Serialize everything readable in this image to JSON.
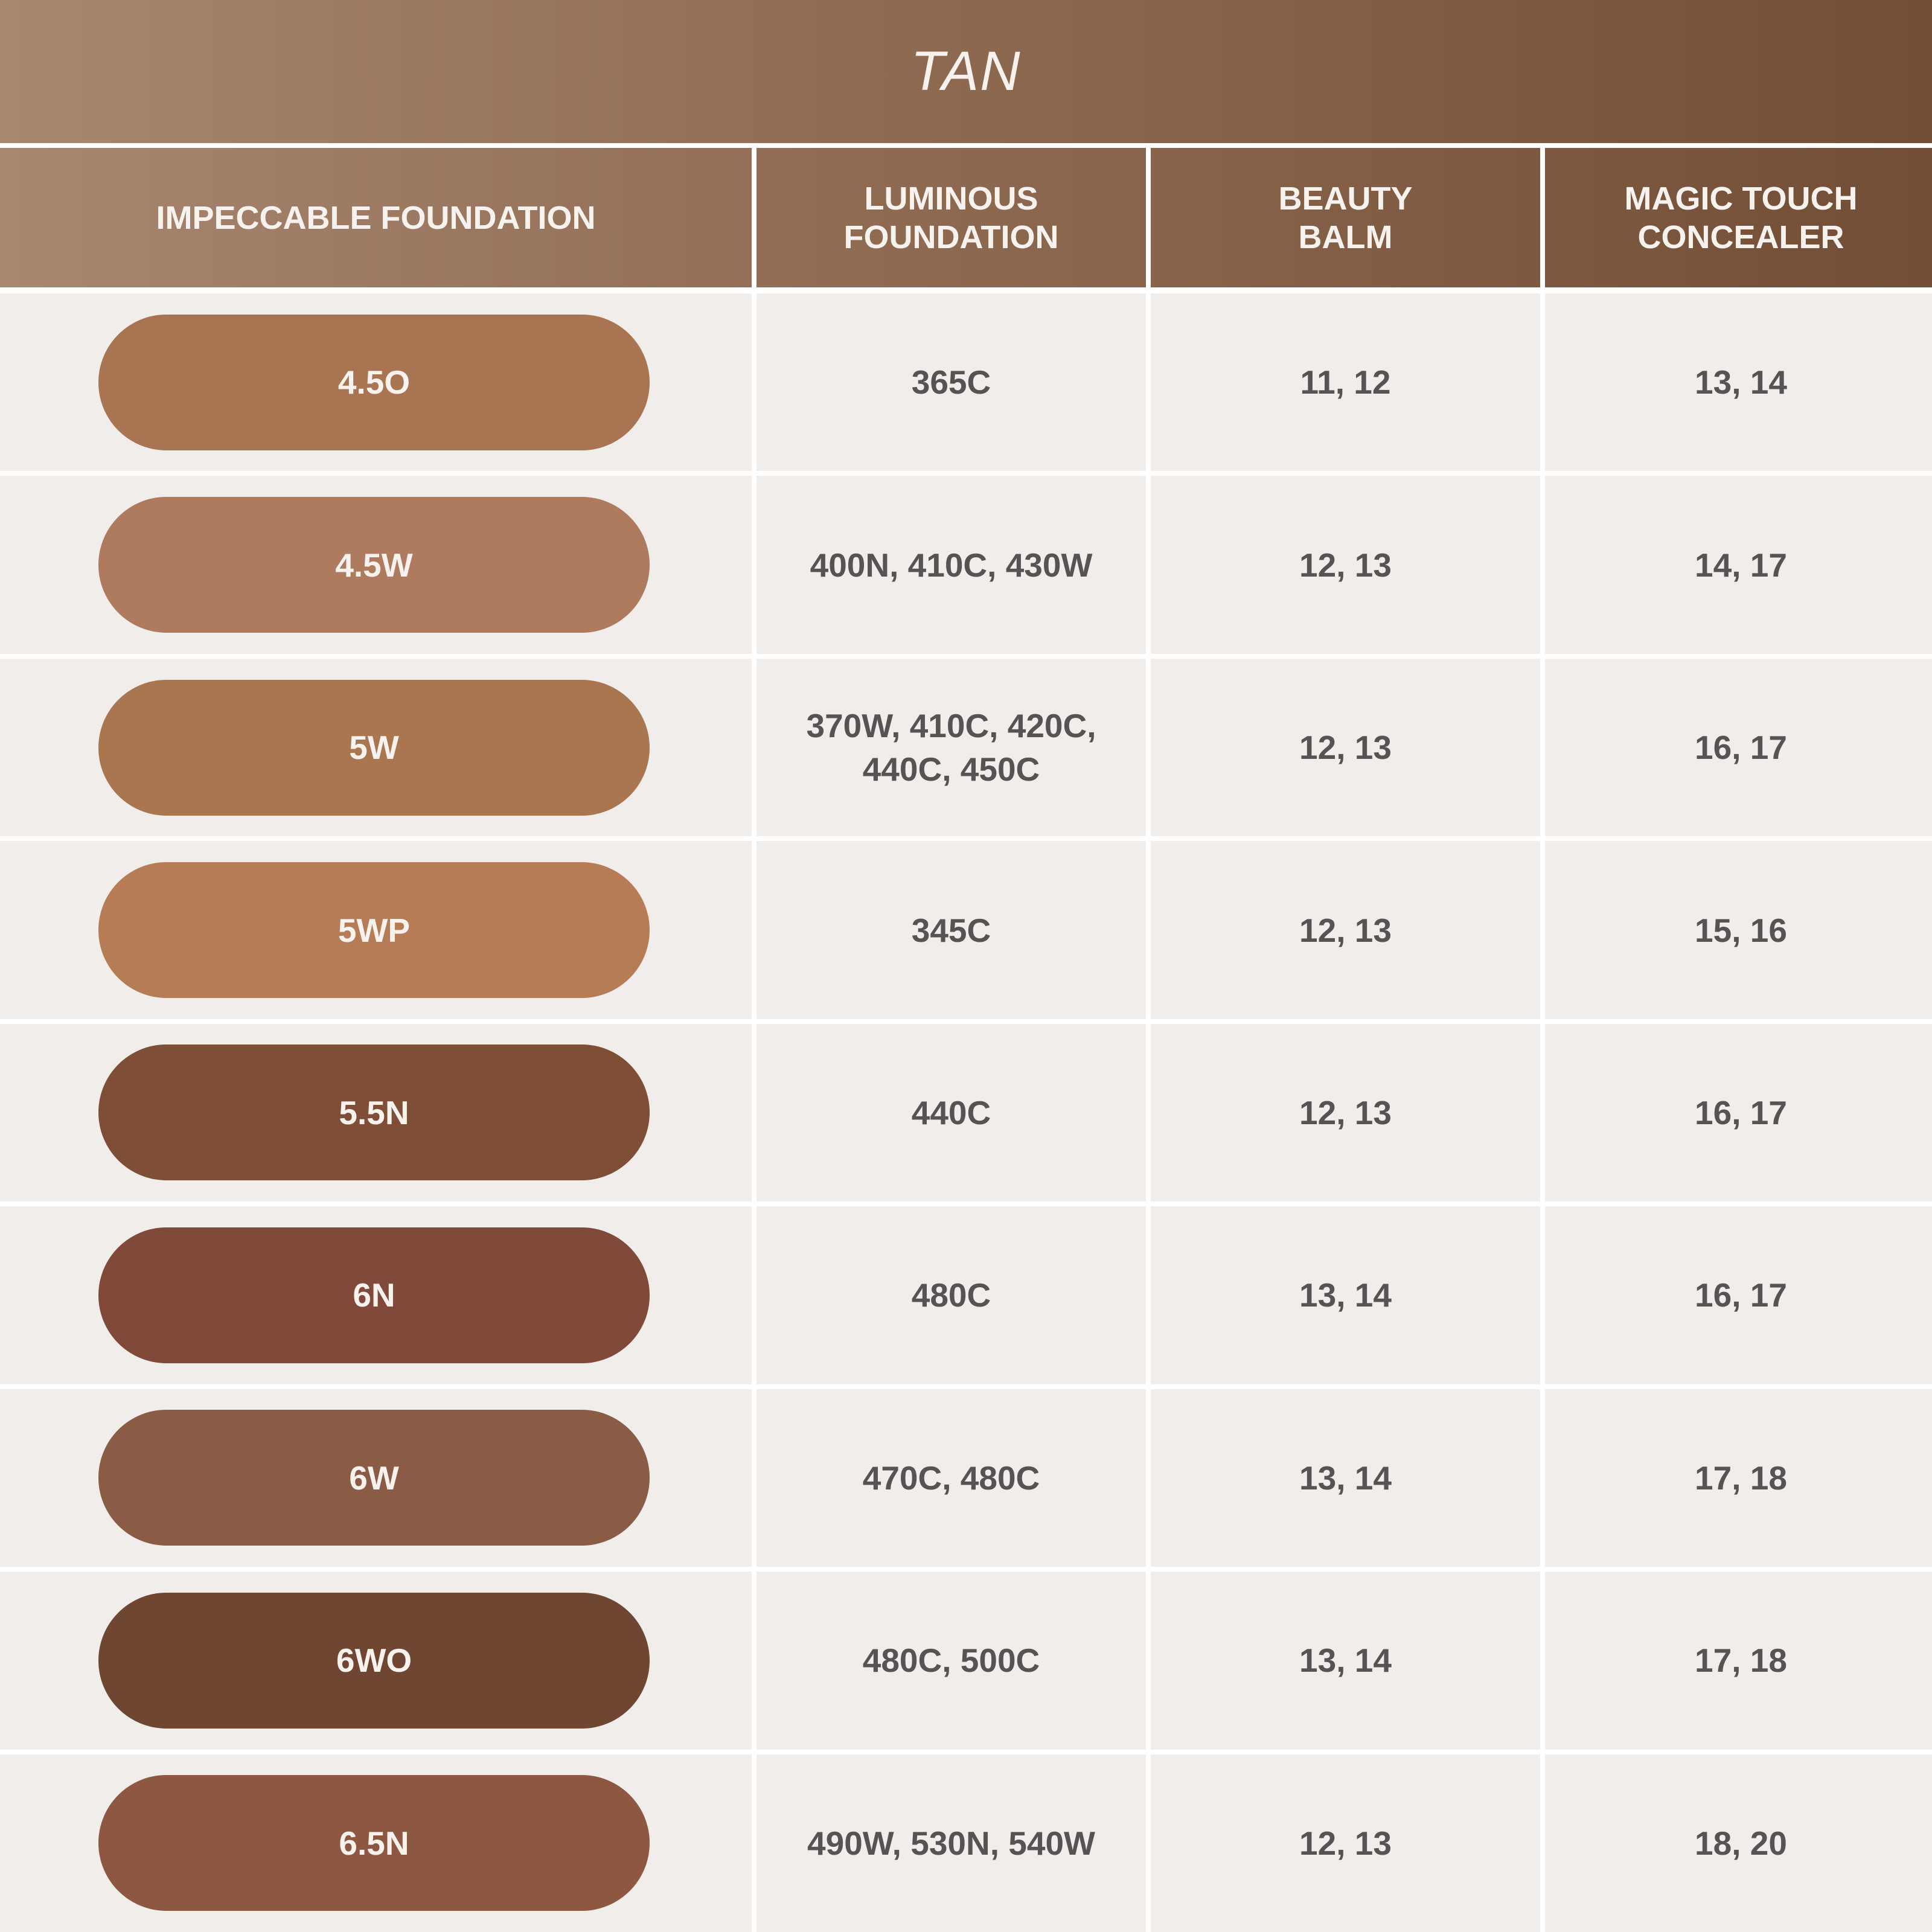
{
  "title": "TAN",
  "headers": [
    "IMPECCABLE FOUNDATION",
    "LUMINOUS\nFOUNDATION",
    "BEAUTY\nBALM",
    "MAGIC TOUCH\nCONCEALER"
  ],
  "rows": [
    {
      "shade": "4.5O",
      "color": "#a87452",
      "luminous": "365C",
      "balm": "11, 12",
      "concealer": "13, 14"
    },
    {
      "shade": "4.5W",
      "color": "#ae7b5e",
      "luminous": "400N, 410C, 430W",
      "balm": "12, 13",
      "concealer": "14, 17"
    },
    {
      "shade": "5W",
      "color": "#aa764f",
      "luminous": "370W, 410C, 420C,\n440C, 450C",
      "balm": "12, 13",
      "concealer": "16, 17"
    },
    {
      "shade": "5WP",
      "color": "#b67c55",
      "luminous": "345C",
      "balm": "12, 13",
      "concealer": "15, 16"
    },
    {
      "shade": "5.5N",
      "color": "#7e4f36",
      "luminous": "440C",
      "balm": "12, 13",
      "concealer": "16, 17"
    },
    {
      "shade": "6N",
      "color": "#80493a",
      "luminous": "480C",
      "balm": "13, 14",
      "concealer": "16, 17"
    },
    {
      "shade": "6W",
      "color": "#8a5c45",
      "luminous": "470C, 480C",
      "balm": "13, 14",
      "concealer": "17, 18"
    },
    {
      "shade": "6WO",
      "color": "#6e4632",
      "luminous": "480C, 500C",
      "balm": "13, 14",
      "concealer": "17, 18"
    },
    {
      "shade": "6.5N",
      "color": "#8d5741",
      "luminous": "490W, 530N, 540W",
      "balm": "12, 13",
      "concealer": "18, 20"
    }
  ]
}
